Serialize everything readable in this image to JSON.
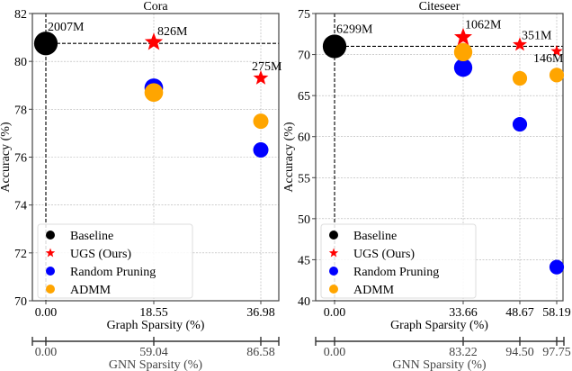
{
  "chart_data": [
    {
      "type": "scatter",
      "title": "Cora",
      "xlabel": "Graph Sparsity (%)",
      "ylabel": "Accuracy (%)",
      "secondary_xlabel": "GNN Sparsity (%)",
      "ylim": [
        70,
        82
      ],
      "yticks": [
        70,
        72,
        74,
        76,
        78,
        80,
        82
      ],
      "xticks": [
        "0.00",
        "18.55",
        "36.98"
      ],
      "secondary_xticks": [
        "0.00",
        "59.04",
        "86.58"
      ],
      "grid": true,
      "legend_position": "lower-left",
      "baseline_accuracy": 80.75,
      "series": [
        {
          "name": "Baseline",
          "marker": "circle",
          "color": "#000000",
          "points": [
            {
              "x": "0.00",
              "y": 80.75,
              "size_label": "2007M",
              "size": 1.0
            }
          ]
        },
        {
          "name": "UGS (Ours)",
          "marker": "star",
          "color": "#ff0000",
          "points": [
            {
              "x": "18.55",
              "y": 80.8,
              "size_label": "826M",
              "size": 0.62
            },
            {
              "x": "36.98",
              "y": 79.3,
              "size_label": "275M",
              "size": 0.42
            }
          ]
        },
        {
          "name": "Random Pruning",
          "marker": "circle",
          "color": "#0000ff",
          "points": [
            {
              "x": "18.55",
              "y": 78.9,
              "size": 0.62
            },
            {
              "x": "36.98",
              "y": 76.3,
              "size": 0.42
            }
          ]
        },
        {
          "name": "ADMM",
          "marker": "circle",
          "color": "#ffa500",
          "points": [
            {
              "x": "18.55",
              "y": 78.7,
              "size": 0.62
            },
            {
              "x": "36.98",
              "y": 77.5,
              "size": 0.42
            }
          ]
        }
      ]
    },
    {
      "type": "scatter",
      "title": "Citeseer",
      "xlabel": "Graph Sparsity (%)",
      "ylabel": "Accuracy (%)",
      "secondary_xlabel": "GNN Sparsity (%)",
      "ylim": [
        40,
        75
      ],
      "yticks": [
        40,
        45,
        50,
        55,
        60,
        65,
        70,
        75
      ],
      "xticks": [
        "0.00",
        "33.66",
        "48.67",
        "58.19"
      ],
      "secondary_xticks": [
        "0.00",
        "83.22",
        "94.50",
        "97.75"
      ],
      "grid": true,
      "legend_position": "lower-left",
      "baseline_accuracy": 71.0,
      "series": [
        {
          "name": "Baseline",
          "marker": "circle",
          "color": "#000000",
          "points": [
            {
              "x": "0.00",
              "y": 71.0,
              "size_label": "6299M",
              "size": 1.0
            }
          ]
        },
        {
          "name": "UGS (Ours)",
          "marker": "star",
          "color": "#ff0000",
          "points": [
            {
              "x": "33.66",
              "y": 72.1,
              "size_label": "1062M",
              "size": 0.6
            },
            {
              "x": "48.67",
              "y": 71.2,
              "size_label": "351M",
              "size": 0.38
            },
            {
              "x": "58.19",
              "y": 70.4,
              "size_label": "146M",
              "size": 0.26
            }
          ]
        },
        {
          "name": "Random Pruning",
          "marker": "circle",
          "color": "#0000ff",
          "points": [
            {
              "x": "33.66",
              "y": 68.4,
              "size": 0.6
            },
            {
              "x": "48.67",
              "y": 61.5,
              "size": 0.38
            },
            {
              "x": "58.19",
              "y": 44.1,
              "size": 0.38
            }
          ]
        },
        {
          "name": "ADMM",
          "marker": "circle",
          "color": "#ffa500",
          "points": [
            {
              "x": "33.66",
              "y": 70.3,
              "size": 0.6
            },
            {
              "x": "48.67",
              "y": 67.1,
              "size": 0.38
            },
            {
              "x": "58.19",
              "y": 67.5,
              "size": 0.38
            }
          ]
        }
      ]
    }
  ]
}
